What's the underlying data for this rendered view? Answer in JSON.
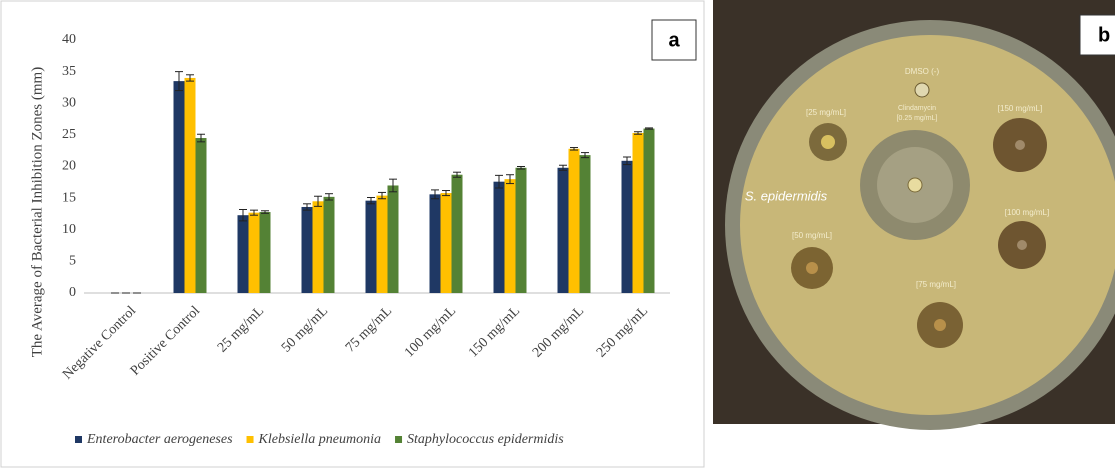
{
  "chart_data": {
    "type": "bar",
    "panel_label": "a",
    "ylabel": "The Average of Bacterial Inhibition Zones (mm)",
    "categories": [
      "Negative Control",
      "Positive Control",
      "25 mg/mL",
      "50 mg/mL",
      "75 mg/mL",
      "100 mg/mL",
      "150 mg/mL",
      "200 mg/mL",
      "250 mg/mL"
    ],
    "series": [
      {
        "name": "Enterobacter aerogeneses",
        "color": "#1f3864",
        "values": [
          0,
          33.5,
          12.3,
          13.6,
          14.6,
          15.6,
          17.6,
          19.8,
          20.9
        ],
        "errors": [
          0,
          1.5,
          0.9,
          0.5,
          0.5,
          0.7,
          1.0,
          0.4,
          0.6
        ]
      },
      {
        "name": "Klebsiella pneumonia",
        "color": "#ffc000",
        "values": [
          0,
          34,
          12.7,
          14.5,
          15.4,
          15.8,
          18,
          22.8,
          25.3
        ],
        "errors": [
          0,
          0.5,
          0.4,
          0.8,
          0.5,
          0.4,
          0.7,
          0.2,
          0.2
        ]
      },
      {
        "name": "Staphylococcus epidermidis",
        "color": "#548235",
        "values": [
          0,
          24.5,
          12.8,
          15.2,
          17,
          18.7,
          19.8,
          21.8,
          26
        ],
        "errors": [
          0,
          0.6,
          0.2,
          0.5,
          1.0,
          0.4,
          0.2,
          0.4,
          0.1
        ]
      }
    ],
    "ylim": [
      0,
      40
    ],
    "yticks": [
      0,
      5,
      10,
      15,
      20,
      25,
      30,
      35,
      40
    ],
    "grid": false,
    "legend": "bottom"
  },
  "photo": {
    "panel_label": "b",
    "organism": "S. epidermidis",
    "labels": [
      "DMSO (-)",
      "Clindamycin",
      "[0.25 mg/mL]",
      "[25 mg/mL]",
      "[150 mg/mL]",
      "[100 mg/mL]",
      "[50 mg/mL]",
      "[75 mg/mL]"
    ]
  }
}
